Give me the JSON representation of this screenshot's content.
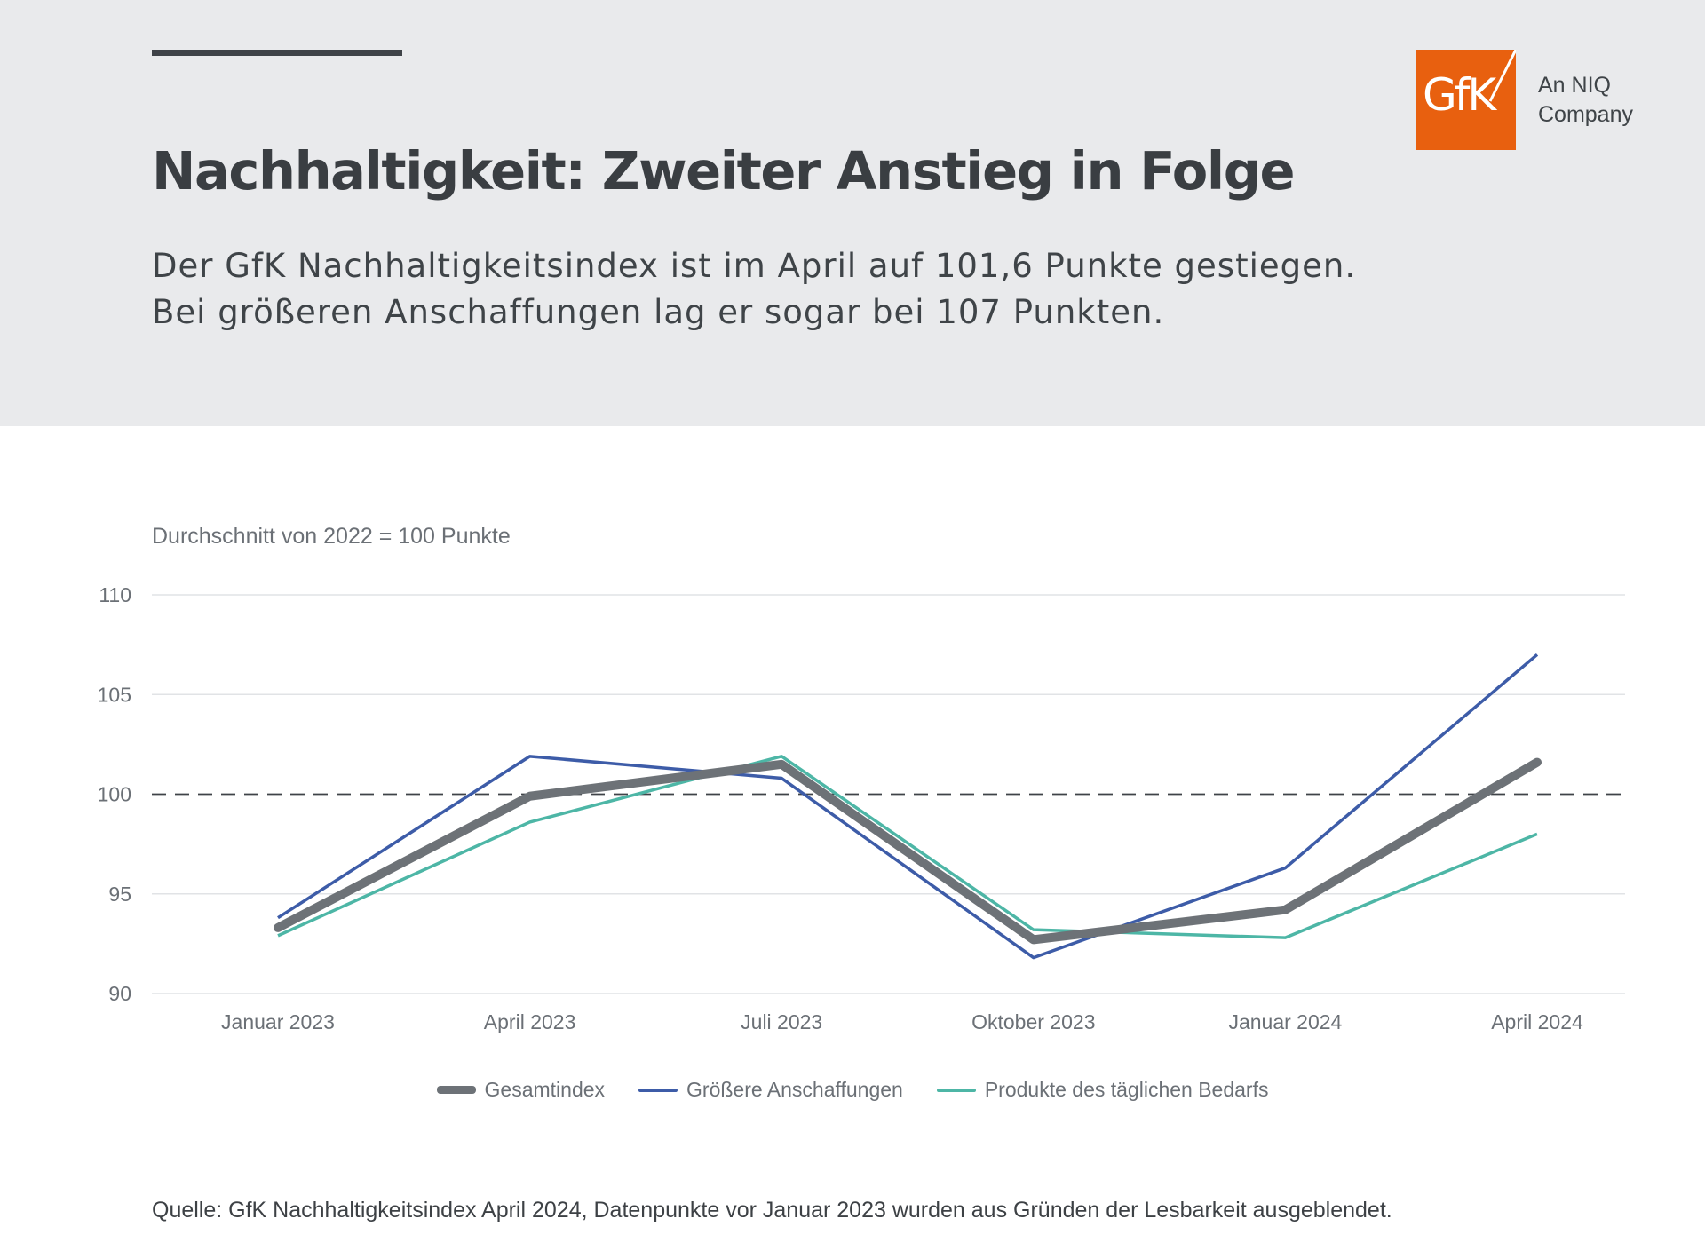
{
  "header": {
    "title": "Nachhaltigkeit: Zweiter Anstieg in Folge",
    "subtitle_line1": "Der GfK Nachhaltigkeitsindex ist im April auf 101,6 Punkte gestiegen.",
    "subtitle_line2": "Bei größeren Anschaffungen lag er sogar bei 107 Punkten.",
    "accent_color": "#3f4348",
    "background_color": "#e9eaec"
  },
  "logo": {
    "text": "GfK",
    "tagline_line1": "An NIQ",
    "tagline_line2": "Company",
    "color": "#e8600f"
  },
  "chart_data": {
    "type": "line",
    "ylabel": "Durchschnitt von 2022 = 100 Punkte",
    "categories": [
      "Januar 2023",
      "April 2023",
      "Juli 2023",
      "Oktober 2023",
      "Januar 2024",
      "April 2024"
    ],
    "ylim": [
      90,
      110
    ],
    "yticks": [
      90,
      95,
      100,
      105,
      110
    ],
    "reference_line": 100,
    "grid": true,
    "legend_position": "bottom",
    "series": [
      {
        "name": "Gesamtindex",
        "color": "#6d7277",
        "values": [
          93.3,
          99.9,
          101.5,
          92.7,
          94.2,
          101.6
        ]
      },
      {
        "name": "Größere Anschaffungen",
        "color": "#3d5ca8",
        "values": [
          93.8,
          101.9,
          100.8,
          91.8,
          96.3,
          107.0
        ]
      },
      {
        "name": "Produkte des täglichen Bedarfs",
        "color": "#4db6a6",
        "values": [
          92.9,
          98.6,
          101.9,
          93.2,
          92.8,
          98.0
        ]
      }
    ]
  },
  "footer": {
    "source": "Quelle: GfK Nachhaltigkeitsindex April 2024, Datenpunkte vor Januar 2023 wurden aus Gründen der Lesbarkeit ausgeblendet."
  }
}
